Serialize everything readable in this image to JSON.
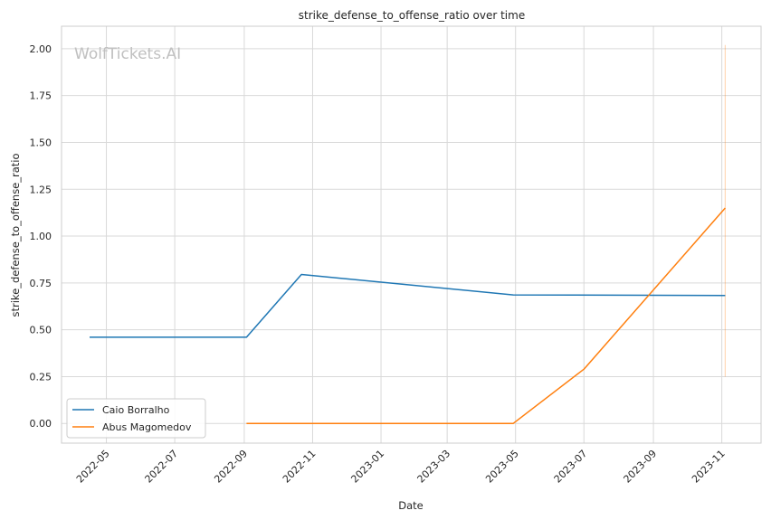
{
  "chart_data": {
    "type": "line",
    "title": "strike_defense_to_offense_ratio over time",
    "xlabel": "Date",
    "ylabel": "strike_defense_to_offense_ratio",
    "watermark": "WolfTickets.AI",
    "xlim": [
      "2022-03-22",
      "2023-12-06"
    ],
    "ylim": [
      -0.105,
      2.12
    ],
    "x_ticks": [
      "2022-05-01",
      "2022-07-01",
      "2022-09-01",
      "2022-11-01",
      "2023-01-01",
      "2023-03-01",
      "2023-05-01",
      "2023-07-01",
      "2023-09-01",
      "2023-11-01"
    ],
    "x_tick_labels": [
      "2022-05",
      "2022-07",
      "2022-09",
      "2022-11",
      "2023-01",
      "2023-03",
      "2023-05",
      "2023-07",
      "2023-09",
      "2023-11"
    ],
    "y_ticks": [
      0,
      0.25,
      0.5,
      0.75,
      1,
      1.25,
      1.5,
      1.75,
      2
    ],
    "y_tick_labels": [
      "0.00",
      "0.25",
      "0.50",
      "0.75",
      "1.00",
      "1.25",
      "1.50",
      "1.75",
      "2.00"
    ],
    "grid": true,
    "legend_position": "lower-left",
    "series": [
      {
        "name": "Caio Borralho",
        "color": "#1f77b4",
        "x": [
          "2022-04-16",
          "2022-09-03",
          "2022-10-22",
          "2023-04-29",
          "2023-11-04"
        ],
        "y": [
          0.46,
          0.46,
          0.795,
          0.686,
          0.683
        ]
      },
      {
        "name": "Abus Magomedov",
        "color": "#ff7f0e",
        "x": [
          "2022-09-03",
          "2023-04-29",
          "2023-07-01",
          "2023-11-04"
        ],
        "y": [
          0.0,
          0.0,
          0.29,
          1.15
        ]
      }
    ],
    "marker_line": {
      "x": "2023-11-04",
      "y_range": [
        0.25,
        2.02
      ],
      "color": "#ff7f0e"
    }
  }
}
